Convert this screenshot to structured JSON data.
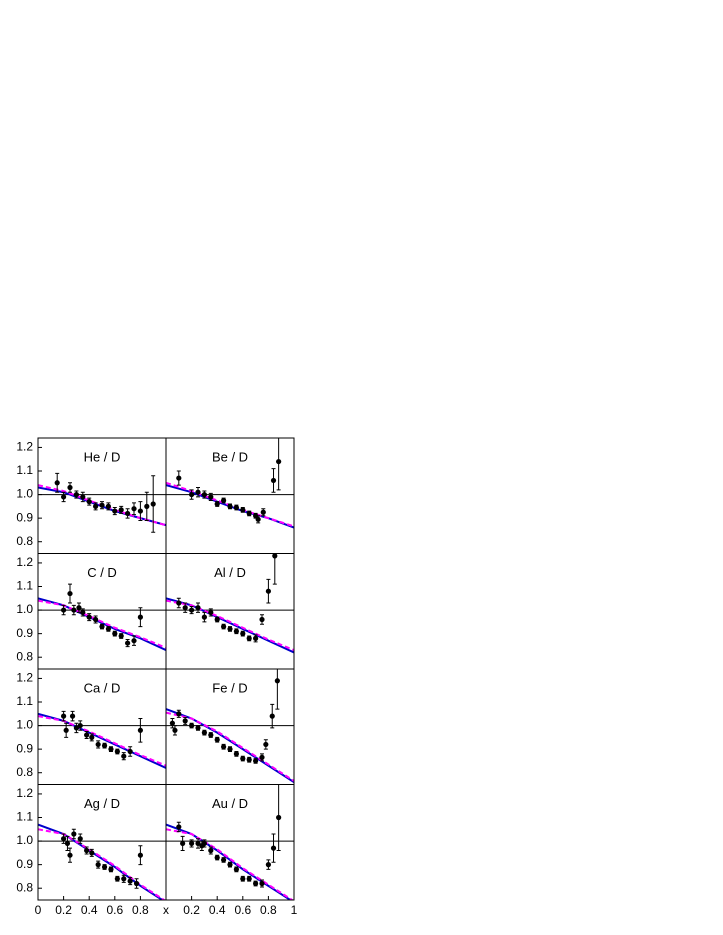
{
  "chart_data": [
    {
      "type": "scatter",
      "title": "He / D",
      "xlim": [
        0,
        1
      ],
      "ylim": [
        0.75,
        1.24
      ],
      "hline": 1,
      "yticks": [
        0.8,
        0.9,
        {
          "value": 1.0,
          "label": "1.0"
        },
        1.1,
        1.2
      ],
      "points": {
        "color": "#000000",
        "x": [
          0.15,
          0.2,
          0.25,
          0.3,
          0.35,
          0.4,
          0.45,
          0.5,
          0.55,
          0.6,
          0.65,
          0.7,
          0.75,
          0.8,
          0.85,
          0.9
        ],
        "values": [
          1.05,
          0.99,
          1.03,
          1.0,
          0.99,
          0.97,
          0.95,
          0.955,
          0.95,
          0.93,
          0.935,
          0.92,
          0.94,
          0.93,
          0.95,
          0.96
        ],
        "errors": [
          0.04,
          0.02,
          0.02,
          0.015,
          0.02,
          0.015,
          0.015,
          0.015,
          0.015,
          0.015,
          0.015,
          0.02,
          0.025,
          0.04,
          0.06,
          0.12
        ]
      },
      "curves": [
        {
          "color": "#0000cc",
          "style": "solid",
          "x": [
            0,
            0.2,
            0.4,
            0.6,
            0.8,
            1
          ],
          "values": [
            1.03,
            1.01,
            0.97,
            0.93,
            0.9,
            0.87
          ]
        },
        {
          "color": "#ff00ff",
          "style": "dashed",
          "x": [
            0,
            0.2,
            0.4,
            0.6,
            0.8,
            1
          ],
          "values": [
            1.04,
            1.015,
            0.975,
            0.935,
            0.9,
            0.87
          ]
        }
      ]
    },
    {
      "type": "scatter",
      "title": "Be / D",
      "xlim": [
        0,
        1
      ],
      "ylim": [
        0.75,
        1.24
      ],
      "hline": 1,
      "points": {
        "color": "#000000",
        "x": [
          0.1,
          0.2,
          0.25,
          0.3,
          0.35,
          0.4,
          0.45,
          0.5,
          0.55,
          0.6,
          0.65,
          0.7,
          0.72,
          0.76,
          0.84,
          0.88
        ],
        "values": [
          1.07,
          1.0,
          1.01,
          1.0,
          0.99,
          0.96,
          0.975,
          0.95,
          0.945,
          0.935,
          0.92,
          0.91,
          0.895,
          0.925,
          1.06,
          1.14
        ],
        "errors": [
          0.03,
          0.02,
          0.02,
          0.015,
          0.015,
          0.01,
          0.01,
          0.01,
          0.01,
          0.01,
          0.01,
          0.01,
          0.015,
          0.015,
          0.05,
          0.12
        ]
      },
      "curves": [
        {
          "color": "#0000cc",
          "style": "solid",
          "x": [
            0,
            0.2,
            0.4,
            0.6,
            0.8,
            1
          ],
          "values": [
            1.04,
            1.01,
            0.97,
            0.93,
            0.9,
            0.86
          ]
        },
        {
          "color": "#ff00ff",
          "style": "dashed",
          "x": [
            0,
            0.2,
            0.4,
            0.6,
            0.8,
            1
          ],
          "values": [
            1.05,
            1.015,
            0.975,
            0.935,
            0.9,
            0.865
          ]
        }
      ]
    },
    {
      "type": "scatter",
      "title": "C / D",
      "xlim": [
        0,
        1
      ],
      "ylim": [
        0.75,
        1.24
      ],
      "hline": 1,
      "yticks": [
        0.8,
        0.9,
        {
          "value": 1.0,
          "label": "1.0"
        },
        1.1,
        1.2
      ],
      "points": {
        "color": "#000000",
        "x": [
          0.2,
          0.25,
          0.28,
          0.32,
          0.35,
          0.4,
          0.45,
          0.5,
          0.55,
          0.6,
          0.65,
          0.7,
          0.75,
          0.8
        ],
        "values": [
          1.0,
          1.07,
          1.0,
          1.01,
          0.99,
          0.97,
          0.96,
          0.93,
          0.92,
          0.9,
          0.89,
          0.86,
          0.87,
          0.97
        ],
        "errors": [
          0.02,
          0.04,
          0.02,
          0.02,
          0.015,
          0.015,
          0.015,
          0.01,
          0.01,
          0.01,
          0.01,
          0.015,
          0.02,
          0.04
        ]
      },
      "curves": [
        {
          "color": "#0000cc",
          "style": "solid",
          "x": [
            0,
            0.2,
            0.4,
            0.6,
            0.8,
            1
          ],
          "values": [
            1.05,
            1.02,
            0.97,
            0.92,
            0.88,
            0.83
          ]
        },
        {
          "color": "#ff00ff",
          "style": "dashed",
          "x": [
            0,
            0.2,
            0.4,
            0.6,
            0.8,
            1
          ],
          "values": [
            1.04,
            1.02,
            0.975,
            0.925,
            0.885,
            0.84
          ]
        }
      ]
    },
    {
      "type": "scatter",
      "title": "Al / D",
      "xlim": [
        0,
        1
      ],
      "ylim": [
        0.75,
        1.24
      ],
      "hline": 1,
      "points": {
        "color": "#000000",
        "x": [
          0.1,
          0.15,
          0.2,
          0.25,
          0.3,
          0.35,
          0.4,
          0.45,
          0.5,
          0.55,
          0.6,
          0.65,
          0.7,
          0.75,
          0.8,
          0.85
        ],
        "values": [
          1.03,
          1.01,
          1.0,
          1.01,
          0.97,
          0.99,
          0.96,
          0.93,
          0.92,
          0.91,
          0.9,
          0.88,
          0.88,
          0.96,
          1.08,
          1.23
        ],
        "errors": [
          0.02,
          0.02,
          0.015,
          0.02,
          0.02,
          0.015,
          0.01,
          0.01,
          0.01,
          0.01,
          0.01,
          0.01,
          0.015,
          0.02,
          0.05,
          0.12
        ]
      },
      "curves": [
        {
          "color": "#0000cc",
          "style": "solid",
          "x": [
            0,
            0.2,
            0.4,
            0.6,
            0.8,
            1
          ],
          "values": [
            1.05,
            1.02,
            0.97,
            0.92,
            0.87,
            0.82
          ]
        },
        {
          "color": "#ff00ff",
          "style": "dashed",
          "x": [
            0,
            0.2,
            0.4,
            0.6,
            0.8,
            1
          ],
          "values": [
            1.04,
            1.02,
            0.975,
            0.925,
            0.875,
            0.83
          ]
        }
      ]
    },
    {
      "type": "scatter",
      "title": "Ca / D",
      "xlim": [
        0,
        1
      ],
      "ylim": [
        0.75,
        1.24
      ],
      "hline": 1,
      "yticks": [
        0.8,
        0.9,
        {
          "value": 1.0,
          "label": "1.0"
        },
        1.1,
        1.2
      ],
      "points": {
        "color": "#000000",
        "x": [
          0.2,
          0.22,
          0.27,
          0.3,
          0.33,
          0.38,
          0.42,
          0.47,
          0.52,
          0.57,
          0.62,
          0.67,
          0.72,
          0.8
        ],
        "values": [
          1.04,
          0.98,
          1.04,
          0.99,
          1.0,
          0.96,
          0.95,
          0.92,
          0.915,
          0.9,
          0.89,
          0.87,
          0.89,
          0.98
        ],
        "errors": [
          0.02,
          0.03,
          0.02,
          0.02,
          0.02,
          0.015,
          0.015,
          0.015,
          0.01,
          0.01,
          0.01,
          0.015,
          0.02,
          0.05
        ]
      },
      "curves": [
        {
          "color": "#0000cc",
          "style": "solid",
          "x": [
            0,
            0.2,
            0.4,
            0.6,
            0.8,
            1
          ],
          "values": [
            1.05,
            1.02,
            0.97,
            0.92,
            0.87,
            0.82
          ]
        },
        {
          "color": "#ff00ff",
          "style": "dashed",
          "x": [
            0,
            0.2,
            0.4,
            0.6,
            0.8,
            1
          ],
          "values": [
            1.04,
            1.02,
            0.975,
            0.925,
            0.875,
            0.83
          ]
        }
      ]
    },
    {
      "type": "scatter",
      "title": "Fe / D",
      "xlim": [
        0,
        1
      ],
      "ylim": [
        0.75,
        1.24
      ],
      "hline": 1,
      "points": {
        "color": "#000000",
        "x": [
          0.05,
          0.07,
          0.1,
          0.15,
          0.2,
          0.25,
          0.3,
          0.35,
          0.4,
          0.45,
          0.5,
          0.55,
          0.6,
          0.65,
          0.7,
          0.75,
          0.78,
          0.83,
          0.87
        ],
        "values": [
          1.01,
          0.98,
          1.05,
          1.02,
          1.0,
          0.99,
          0.97,
          0.96,
          0.94,
          0.91,
          0.9,
          0.88,
          0.86,
          0.855,
          0.85,
          0.865,
          0.92,
          1.04,
          1.19
        ],
        "errors": [
          0.02,
          0.02,
          0.015,
          0.015,
          0.01,
          0.01,
          0.01,
          0.01,
          0.01,
          0.01,
          0.01,
          0.01,
          0.01,
          0.01,
          0.01,
          0.015,
          0.02,
          0.05,
          0.12
        ]
      },
      "curves": [
        {
          "color": "#0000cc",
          "style": "solid",
          "x": [
            0,
            0.2,
            0.4,
            0.6,
            0.8,
            1
          ],
          "values": [
            1.07,
            1.03,
            0.97,
            0.9,
            0.83,
            0.76
          ]
        },
        {
          "color": "#ff00ff",
          "style": "dashed",
          "x": [
            0,
            0.2,
            0.4,
            0.6,
            0.8,
            1
          ],
          "values": [
            1.055,
            1.03,
            0.975,
            0.905,
            0.835,
            0.765
          ]
        }
      ]
    },
    {
      "type": "scatter",
      "title": "Ag / D",
      "xlim": [
        0,
        1
      ],
      "ylim": [
        0.75,
        1.24
      ],
      "hline": 1,
      "xlabel": "x",
      "yticks": [
        0.8,
        0.9,
        {
          "value": 1.0,
          "label": "1.0"
        },
        1.1,
        1.2
      ],
      "xticks": [
        0,
        0.2,
        0.4,
        0.6,
        0.8
      ],
      "points": {
        "color": "#000000",
        "x": [
          0.2,
          0.23,
          0.25,
          0.28,
          0.33,
          0.38,
          0.42,
          0.47,
          0.52,
          0.57,
          0.62,
          0.67,
          0.72,
          0.77,
          0.8
        ],
        "values": [
          1.01,
          0.99,
          0.94,
          1.03,
          1.01,
          0.96,
          0.95,
          0.9,
          0.89,
          0.88,
          0.84,
          0.84,
          0.83,
          0.82,
          0.94
        ],
        "errors": [
          0.02,
          0.03,
          0.03,
          0.02,
          0.02,
          0.015,
          0.015,
          0.015,
          0.01,
          0.01,
          0.01,
          0.015,
          0.015,
          0.02,
          0.04
        ]
      },
      "curves": [
        {
          "color": "#0000cc",
          "style": "solid",
          "x": [
            0,
            0.2,
            0.4,
            0.6,
            0.8,
            1
          ],
          "values": [
            1.07,
            1.03,
            0.96,
            0.89,
            0.81,
            0.74
          ]
        },
        {
          "color": "#ff00ff",
          "style": "dashed",
          "x": [
            0,
            0.2,
            0.4,
            0.6,
            0.8,
            1
          ],
          "values": [
            1.05,
            1.03,
            0.965,
            0.895,
            0.815,
            0.745
          ]
        }
      ]
    },
    {
      "type": "scatter",
      "title": "Au / D",
      "xlim": [
        0,
        1
      ],
      "ylim": [
        0.75,
        1.24
      ],
      "hline": 1,
      "xticks": [
        0.2,
        0.4,
        0.6,
        0.8,
        1
      ],
      "points": {
        "color": "#000000",
        "x": [
          0.1,
          0.13,
          0.2,
          0.25,
          0.28,
          0.3,
          0.35,
          0.4,
          0.45,
          0.5,
          0.55,
          0.6,
          0.65,
          0.7,
          0.75,
          0.8,
          0.84,
          0.88
        ],
        "values": [
          1.06,
          0.99,
          0.99,
          0.99,
          0.98,
          0.99,
          0.96,
          0.93,
          0.92,
          0.9,
          0.88,
          0.84,
          0.84,
          0.82,
          0.82,
          0.9,
          0.97,
          1.1
        ],
        "errors": [
          0.02,
          0.03,
          0.015,
          0.02,
          0.02,
          0.015,
          0.015,
          0.01,
          0.01,
          0.01,
          0.01,
          0.01,
          0.01,
          0.01,
          0.015,
          0.02,
          0.06,
          0.14
        ]
      },
      "curves": [
        {
          "color": "#0000cc",
          "style": "solid",
          "x": [
            0,
            0.2,
            0.4,
            0.6,
            0.8,
            1
          ],
          "values": [
            1.07,
            1.03,
            0.96,
            0.88,
            0.81,
            0.74
          ]
        },
        {
          "color": "#ff00ff",
          "style": "dashed",
          "x": [
            0,
            0.2,
            0.4,
            0.6,
            0.8,
            1
          ],
          "values": [
            1.05,
            1.03,
            0.965,
            0.885,
            0.815,
            0.745
          ]
        }
      ]
    }
  ]
}
